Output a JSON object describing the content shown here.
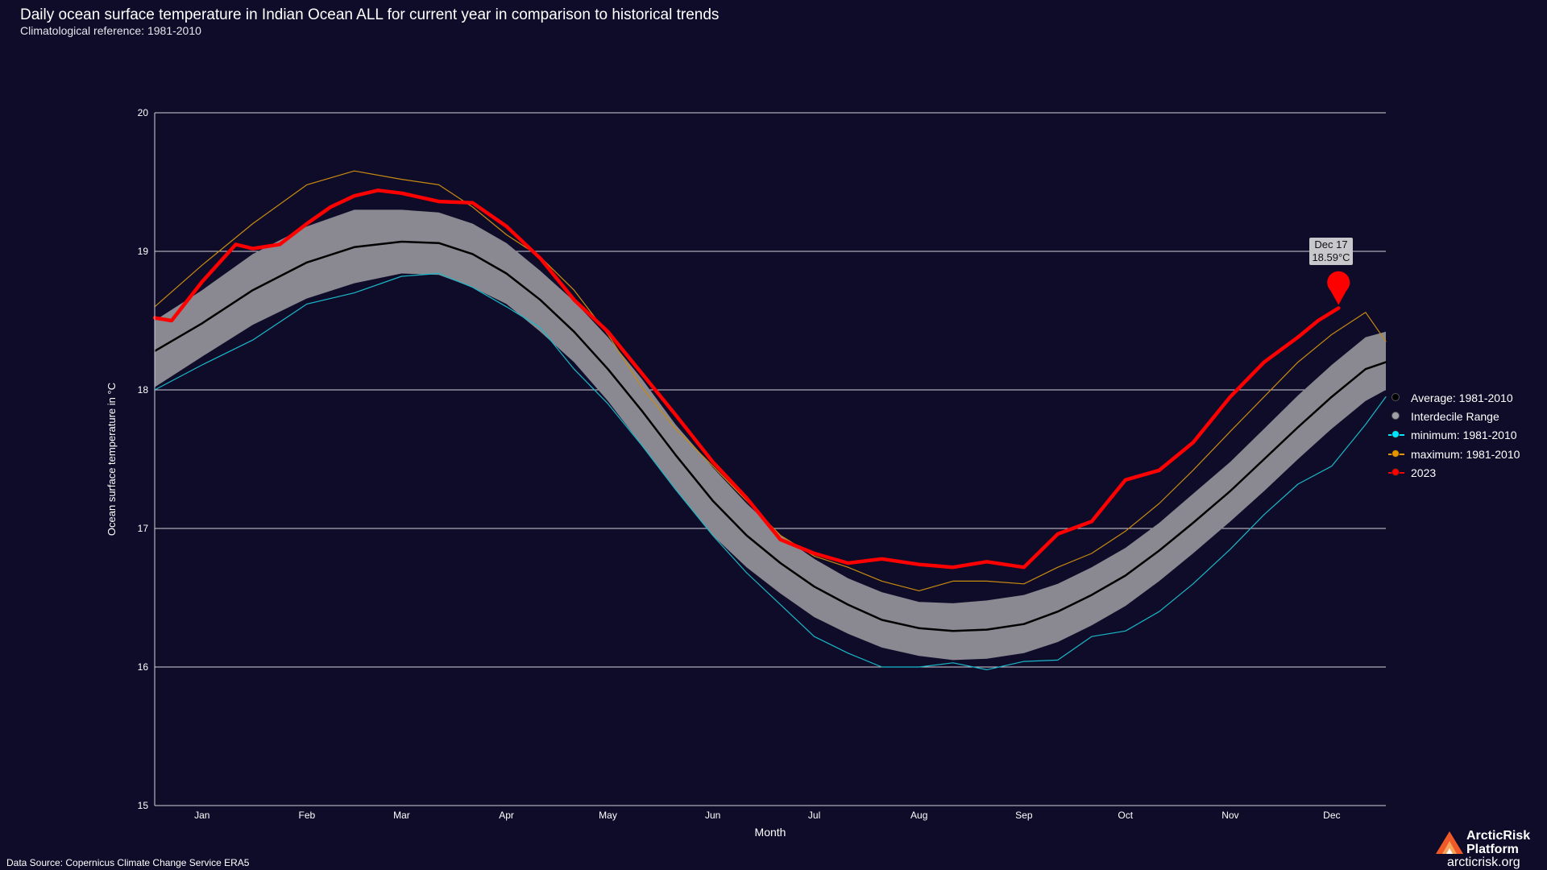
{
  "header": {
    "title": "Daily ocean surface temperature in Indian Ocean ALL for current year in comparison to historical trends",
    "subtitle": "Climatological reference: 1981-2010"
  },
  "footer": {
    "source": "Data Source: Copernicus Climate Change Service ERA5",
    "brand_line1": "ArcticRisk",
    "brand_line2": "Platform",
    "brand_url": "arcticrisk.org"
  },
  "tooltip": {
    "date": "Dec 17",
    "value": "18.59°C"
  },
  "legend": [
    {
      "label": "Average: 1981-2010",
      "color": "#000000",
      "style": "dot"
    },
    {
      "label": "Interdecile Range",
      "color": "#a0a0a8",
      "style": "dot"
    },
    {
      "label": "minimum: 1981-2010",
      "color": "#00e5ff",
      "style": "line-dot"
    },
    {
      "label": "maximum: 1981-2010",
      "color": "#e69500",
      "style": "line-dot"
    },
    {
      "label": "2023",
      "color": "#ff0000",
      "style": "line-dot"
    }
  ],
  "colors": {
    "background": "#0f0c29",
    "average": "#000000",
    "interdecile": "#8a8890",
    "minimum": "#1ab8c8",
    "maximum": "#c88a10",
    "current": "#ff0000",
    "grid": "#d0d0d8"
  },
  "chart_data": {
    "type": "line",
    "title": "Daily ocean surface temperature in Indian Ocean ALL for current year in comparison to historical trends",
    "subtitle": "Climatological reference: 1981-2010",
    "xlabel": "Month",
    "ylabel": "Ocean surface temperature in °C",
    "ylim": [
      15,
      20
    ],
    "xlim": [
      1,
      365
    ],
    "yticks": [
      15,
      16,
      17,
      18,
      19,
      20
    ],
    "month_ticks": [
      {
        "label": "Jan",
        "day": 15
      },
      {
        "label": "Feb",
        "day": 46
      },
      {
        "label": "Mar",
        "day": 74
      },
      {
        "label": "Apr",
        "day": 105
      },
      {
        "label": "May",
        "day": 135
      },
      {
        "label": "Jun",
        "day": 166
      },
      {
        "label": "Jul",
        "day": 196
      },
      {
        "label": "Aug",
        "day": 227
      },
      {
        "label": "Sep",
        "day": 258
      },
      {
        "label": "Oct",
        "day": 288
      },
      {
        "label": "Nov",
        "day": 319
      },
      {
        "label": "Dec",
        "day": 349
      }
    ],
    "grid": true,
    "legend_position": "right",
    "series": [
      {
        "name": "Average: 1981-2010",
        "x": [
          1,
          15,
          30,
          46,
          60,
          74,
          85,
          95,
          105,
          115,
          125,
          135,
          145,
          155,
          166,
          176,
          186,
          196,
          206,
          216,
          227,
          237,
          247,
          258,
          268,
          278,
          288,
          298,
          308,
          319,
          329,
          339,
          349,
          359,
          365
        ],
        "values": [
          18.28,
          18.48,
          18.72,
          18.92,
          19.03,
          19.07,
          19.06,
          18.98,
          18.84,
          18.65,
          18.42,
          18.15,
          17.85,
          17.53,
          17.2,
          16.95,
          16.75,
          16.58,
          16.45,
          16.34,
          16.28,
          16.26,
          16.27,
          16.31,
          16.4,
          16.52,
          16.66,
          16.84,
          17.04,
          17.27,
          17.5,
          17.73,
          17.95,
          18.15,
          18.2
        ]
      },
      {
        "name": "Interdecile Range",
        "x": [
          1,
          15,
          30,
          46,
          60,
          74,
          85,
          95,
          105,
          115,
          125,
          135,
          145,
          155,
          166,
          176,
          186,
          196,
          206,
          216,
          227,
          237,
          247,
          258,
          268,
          278,
          288,
          298,
          308,
          319,
          329,
          339,
          349,
          359,
          365
        ],
        "upper": [
          18.5,
          18.72,
          18.98,
          19.18,
          19.3,
          19.3,
          19.28,
          19.2,
          19.06,
          18.86,
          18.64,
          18.38,
          18.08,
          17.75,
          17.44,
          17.18,
          16.95,
          16.78,
          16.64,
          16.54,
          16.47,
          16.46,
          16.48,
          16.52,
          16.6,
          16.72,
          16.86,
          17.04,
          17.25,
          17.48,
          17.72,
          17.96,
          18.18,
          18.38,
          18.42
        ],
        "lower": [
          18.02,
          18.24,
          18.47,
          18.66,
          18.77,
          18.84,
          18.83,
          18.74,
          18.62,
          18.42,
          18.2,
          17.92,
          17.6,
          17.28,
          16.95,
          16.72,
          16.53,
          16.36,
          16.24,
          16.14,
          16.08,
          16.05,
          16.06,
          16.1,
          16.18,
          16.3,
          16.44,
          16.62,
          16.82,
          17.05,
          17.27,
          17.5,
          17.72,
          17.92,
          18.0
        ]
      },
      {
        "name": "minimum: 1981-2010",
        "x": [
          1,
          15,
          30,
          46,
          60,
          74,
          85,
          95,
          105,
          115,
          125,
          135,
          145,
          155,
          166,
          176,
          186,
          196,
          206,
          216,
          227,
          237,
          247,
          258,
          268,
          278,
          288,
          298,
          308,
          319,
          329,
          339,
          349,
          359,
          365
        ],
        "values": [
          18.0,
          18.18,
          18.36,
          18.62,
          18.7,
          18.82,
          18.84,
          18.74,
          18.6,
          18.45,
          18.15,
          17.9,
          17.6,
          17.28,
          16.95,
          16.68,
          16.45,
          16.22,
          16.1,
          16.0,
          16.0,
          16.03,
          15.98,
          16.04,
          16.05,
          16.22,
          16.26,
          16.4,
          16.6,
          16.85,
          17.1,
          17.32,
          17.45,
          17.75,
          17.95
        ]
      },
      {
        "name": "maximum: 1981-2010",
        "x": [
          1,
          15,
          30,
          46,
          60,
          74,
          85,
          95,
          105,
          115,
          125,
          135,
          145,
          155,
          166,
          176,
          186,
          196,
          206,
          216,
          227,
          237,
          247,
          258,
          268,
          278,
          288,
          298,
          308,
          319,
          329,
          339,
          349,
          359,
          365
        ],
        "values": [
          18.6,
          18.9,
          19.2,
          19.48,
          19.58,
          19.52,
          19.48,
          19.32,
          19.12,
          18.96,
          18.72,
          18.4,
          18.02,
          17.72,
          17.45,
          17.2,
          16.95,
          16.8,
          16.72,
          16.62,
          16.55,
          16.62,
          16.62,
          16.6,
          16.72,
          16.82,
          16.98,
          17.18,
          17.42,
          17.7,
          17.95,
          18.2,
          18.4,
          18.56,
          18.35
        ]
      },
      {
        "name": "2023",
        "x": [
          1,
          6,
          15,
          25,
          30,
          38,
          46,
          53,
          60,
          67,
          74,
          85,
          95,
          105,
          115,
          125,
          135,
          145,
          155,
          166,
          176,
          186,
          196,
          206,
          216,
          227,
          237,
          247,
          258,
          268,
          278,
          288,
          298,
          308,
          319,
          329,
          339,
          345,
          351
        ],
        "values": [
          18.52,
          18.5,
          18.78,
          19.05,
          19.02,
          19.05,
          19.2,
          19.32,
          19.4,
          19.44,
          19.42,
          19.36,
          19.35,
          19.18,
          18.95,
          18.65,
          18.42,
          18.12,
          17.82,
          17.48,
          17.22,
          16.92,
          16.82,
          16.75,
          16.78,
          16.74,
          16.72,
          16.76,
          16.72,
          16.96,
          17.05,
          17.35,
          17.42,
          17.62,
          17.95,
          18.2,
          18.38,
          18.5,
          18.59
        ]
      }
    ],
    "annotation": {
      "date": "Dec 17",
      "day": 351,
      "value": 18.59,
      "text": "18.59°C"
    }
  }
}
